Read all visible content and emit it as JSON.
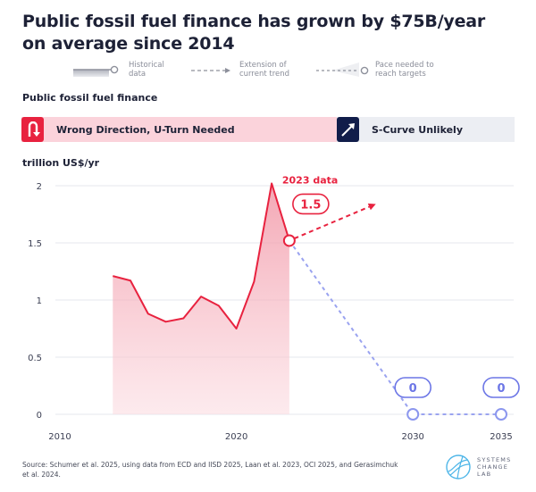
{
  "title": "Public fossil fuel finance has grown by $75B/year on average since 2014",
  "legend": {
    "historical": "Historical\ndata",
    "trend": "Extension of\ncurrent trend",
    "pace": "Pace needed to\nreach targets"
  },
  "section_title": "Public fossil fuel finance",
  "status": {
    "left": {
      "label": "Wrong Direction, U-Turn Needed",
      "icon": "u-turn-icon",
      "color": "#e8223f",
      "bg": "#fbd3db"
    },
    "right": {
      "label": "S-Curve Unlikely",
      "icon": "arrow-up-right-icon",
      "color": "#111d4a",
      "bg": "#eceef3"
    }
  },
  "source": "Source: Schumer et al. 2025, using data from ECD and IISD 2025, Laan et al. 2023, OCI 2025, and Gerasimchuk et al. 2024.",
  "logo": {
    "text": "SYSTEMS\nCHANGE\nLAB",
    "icon": "systems-change-lab-logo-icon"
  },
  "chart_data": {
    "type": "line",
    "title": "Public fossil fuel finance",
    "ylabel": "trillion US$/yr",
    "xlabel": "",
    "xlim": [
      2010,
      2035
    ],
    "ylim": [
      0,
      2
    ],
    "x_ticks": [
      2010,
      2020,
      2030,
      2035
    ],
    "y_ticks": [
      0,
      0.5,
      1,
      1.5,
      2
    ],
    "y_tick_labels": [
      "0",
      "0.5",
      "1",
      "1.5",
      "2"
    ],
    "grid": true,
    "colors": {
      "historical": "#e8223f",
      "target": "#8c97ee",
      "grid": "#e6e7ec"
    },
    "series": [
      {
        "name": "Historical data",
        "style": "solid-area",
        "x": [
          2013,
          2014,
          2015,
          2016,
          2017,
          2018,
          2019,
          2020,
          2021,
          2022,
          2023
        ],
        "values": [
          1.21,
          1.17,
          0.88,
          0.81,
          0.84,
          1.03,
          0.95,
          0.75,
          1.16,
          2.02,
          1.52
        ]
      },
      {
        "name": "Extension of current trend",
        "style": "dashed-arrow",
        "x": [
          2023,
          2027.9
        ],
        "values": [
          1.52,
          1.84
        ]
      },
      {
        "name": "Pace needed to reach targets",
        "style": "dashed",
        "x": [
          2023,
          2030,
          2035
        ],
        "values": [
          1.52,
          0,
          0
        ]
      }
    ],
    "annotations": [
      {
        "text": "2023 data",
        "x": 2023,
        "y": 1.52,
        "color": "#e8223f"
      },
      {
        "text": "1.5",
        "x": 2023,
        "y": 1.52,
        "type": "badge",
        "color": "#e8223f"
      },
      {
        "text": "0",
        "x": 2030,
        "y": 0,
        "type": "badge",
        "color": "#6c76e6"
      },
      {
        "text": "0",
        "x": 2035,
        "y": 0,
        "type": "badge",
        "color": "#6c76e6"
      }
    ]
  }
}
